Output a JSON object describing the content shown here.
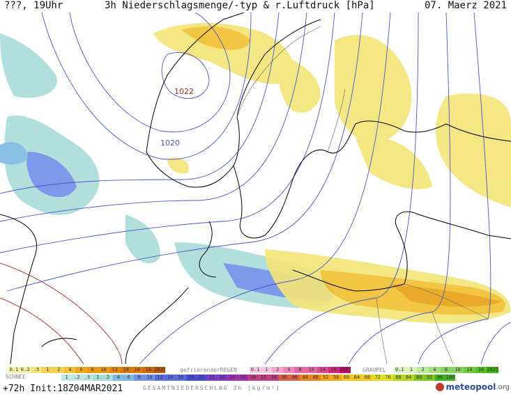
{
  "header": {
    "left": "???, 19Uhr",
    "center": "3h Niederschlagsmenge/-typ & r.Luftdruck [hPa]",
    "right": "07. Maerz 2021"
  },
  "map": {
    "isobar_labels": [
      "1022",
      "1020"
    ],
    "colors": {
      "rain_light": "#f3e57a",
      "rain_mid": "#f1c232",
      "rain_heavy": "#e8a317",
      "snow_light": "#a8dcd9",
      "snow_mid": "#7db9e0",
      "snow_heavy": "#6f8fe8",
      "isobar_blue": "#4a56c8",
      "isobar_red": "#a52a2a",
      "coast": "#000000"
    }
  },
  "legend": {
    "rain_values": [
      "0.1",
      "0.2",
      ".5",
      "1",
      "2",
      "4",
      "6",
      "8",
      "10",
      "12",
      "14",
      "16",
      "18",
      "2025+"
    ],
    "freezing_label": "gefrierenderREGEN",
    "freezing_values": [
      "0.1",
      "1",
      "2",
      "4",
      "8",
      "10",
      "14",
      "16",
      "2025+"
    ],
    "graupel_label": "GRAUPEL",
    "graupel_values": [
      "0.1",
      "1",
      "2",
      "4",
      "8",
      "10",
      "14",
      "16",
      "2025+"
    ],
    "snow_label": "SCHNEE",
    "snow_values": [
      "1",
      ".2",
      ".5",
      "1",
      "2",
      "4",
      "6",
      "8",
      "10",
      "12",
      "14",
      "16",
      "18",
      "20",
      "22",
      "24",
      "26",
      "28",
      "30",
      "32",
      "34",
      "36",
      "40",
      "44",
      "48",
      "52",
      "56",
      "60",
      "64",
      "68",
      "72",
      "76",
      "80",
      "84",
      "88",
      "92",
      "96",
      "100"
    ],
    "total_label": "GESAMTNIEDERSCHLAG 3h [kg/m²]"
  },
  "footer": {
    "run_info": "+72h Init:18Z04MAR2021",
    "logo_main": "meteopool",
    "logo_suffix": ".org"
  }
}
